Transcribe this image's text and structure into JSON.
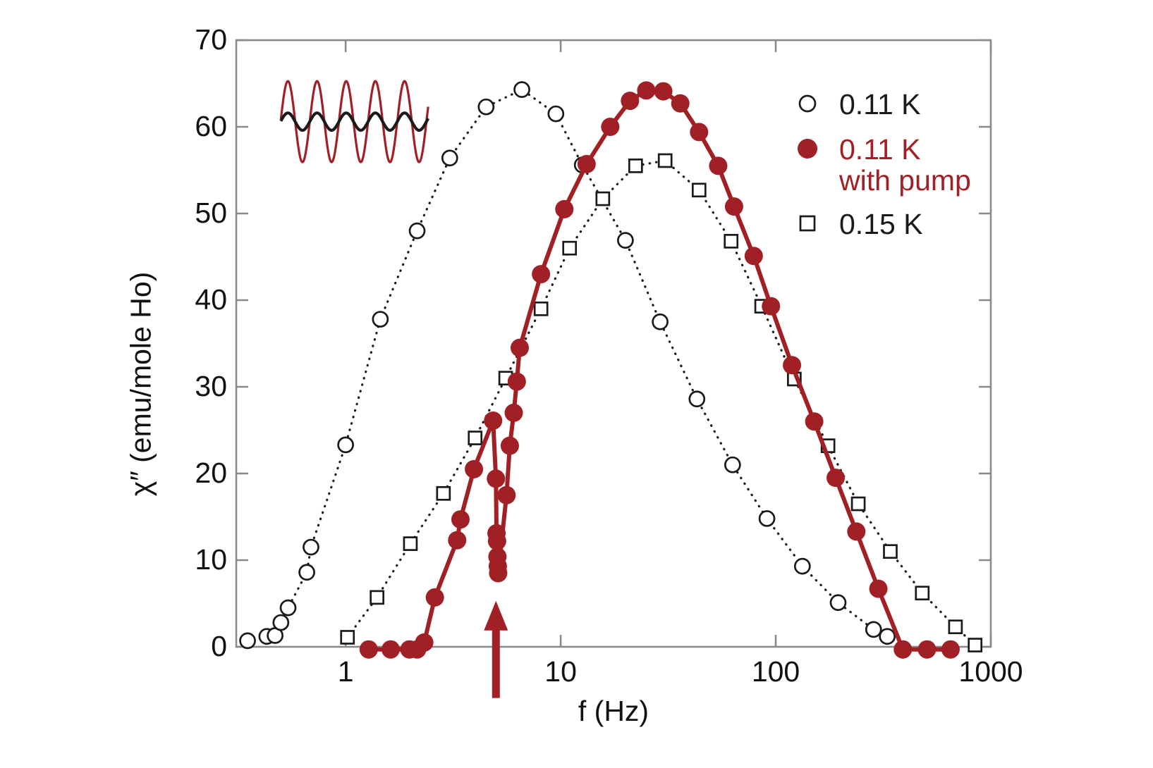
{
  "figure": {
    "background": "#ffffff"
  },
  "chart_data": {
    "type": "line",
    "title": "",
    "xlabel": "f (Hz)",
    "ylabel": "χ″  (emu/mole Ho)",
    "x_scale": "log",
    "xlim": [
      0.31,
      1000
    ],
    "ylim": [
      0,
      70
    ],
    "grid": false,
    "legend_position": "upper right",
    "axis_color": "#8a8a8a",
    "text_color": "#111111",
    "xticks": {
      "values": [
        1,
        10,
        100,
        1000
      ],
      "labels": [
        "1",
        "10",
        "100",
        "1000"
      ]
    },
    "yticks": {
      "values": [
        0,
        10,
        20,
        30,
        40,
        50,
        60,
        70
      ],
      "labels": [
        "0",
        "10",
        "20",
        "30",
        "40",
        "50",
        "60",
        "70"
      ]
    },
    "series": [
      {
        "name": "0.11 K",
        "marker": "open-circle",
        "line": "dotted",
        "color": "#1a1a1a",
        "points": [
          [
            0.35,
            0.7
          ],
          [
            0.43,
            1.2
          ],
          [
            0.47,
            1.3
          ],
          [
            0.5,
            2.8
          ],
          [
            0.54,
            4.5
          ],
          [
            0.66,
            8.6
          ],
          [
            0.69,
            11.5
          ],
          [
            1.0,
            23.3
          ],
          [
            1.45,
            37.8
          ],
          [
            2.15,
            48.0
          ],
          [
            3.05,
            56.4
          ],
          [
            4.5,
            62.3
          ],
          [
            6.6,
            64.3
          ],
          [
            9.5,
            61.5
          ],
          [
            12.6,
            55.6
          ],
          [
            20,
            46.9
          ],
          [
            29,
            37.5
          ],
          [
            43,
            28.6
          ],
          [
            63,
            21.0
          ],
          [
            91,
            14.8
          ],
          [
            133,
            9.3
          ],
          [
            195,
            5.1
          ],
          [
            285,
            2.0
          ],
          [
            330,
            1.2
          ]
        ]
      },
      {
        "name": "0.11 K with pump",
        "marker": "filled-circle",
        "line": "solid",
        "color": "#a12026",
        "points": [
          [
            1.28,
            -0.3
          ],
          [
            1.62,
            -0.3
          ],
          [
            1.98,
            -0.3
          ],
          [
            2.15,
            -0.3
          ],
          [
            2.32,
            0.5
          ],
          [
            2.6,
            5.7
          ],
          [
            3.3,
            12.3
          ],
          [
            3.42,
            14.7
          ],
          [
            3.95,
            20.5
          ],
          [
            4.85,
            26.1
          ],
          [
            5.0,
            19.4
          ],
          [
            5.03,
            13.1
          ],
          [
            5.06,
            12.2
          ],
          [
            5.08,
            10.4
          ],
          [
            5.1,
            9.3
          ],
          [
            5.12,
            8.5
          ],
          [
            5.6,
            17.5
          ],
          [
            5.8,
            23.2
          ],
          [
            6.05,
            27.0
          ],
          [
            6.25,
            30.6
          ],
          [
            6.45,
            34.5
          ],
          [
            8.1,
            43.0
          ],
          [
            10.4,
            50.5
          ],
          [
            13.2,
            55.7
          ],
          [
            17,
            60.0
          ],
          [
            21,
            63.0
          ],
          [
            25,
            64.2
          ],
          [
            30,
            64.1
          ],
          [
            36,
            62.7
          ],
          [
            44,
            59.4
          ],
          [
            54,
            55.5
          ],
          [
            64,
            50.8
          ],
          [
            79,
            45.1
          ],
          [
            95,
            39.3
          ],
          [
            119,
            32.5
          ],
          [
            151,
            26.0
          ],
          [
            190,
            19.5
          ],
          [
            237,
            13.3
          ],
          [
            300,
            6.7
          ],
          [
            390,
            -0.3
          ],
          [
            505,
            -0.3
          ],
          [
            650,
            -0.3
          ]
        ]
      },
      {
        "name": "0.15 K",
        "marker": "open-square",
        "line": "dotted",
        "color": "#1a1a1a",
        "points": [
          [
            1.02,
            1.1
          ],
          [
            1.4,
            5.7
          ],
          [
            2.0,
            11.9
          ],
          [
            2.85,
            17.7
          ],
          [
            4.0,
            24.1
          ],
          [
            5.55,
            31.0
          ],
          [
            8.1,
            39.0
          ],
          [
            11,
            46.0
          ],
          [
            15.7,
            51.7
          ],
          [
            22.3,
            55.5
          ],
          [
            30.6,
            56.1
          ],
          [
            44,
            52.7
          ],
          [
            62,
            46.8
          ],
          [
            86,
            39.3
          ],
          [
            122,
            30.9
          ],
          [
            175,
            23.2
          ],
          [
            242,
            16.5
          ],
          [
            341,
            11.0
          ],
          [
            480,
            6.2
          ],
          [
            685,
            2.3
          ],
          [
            845,
            0.2
          ]
        ]
      }
    ],
    "legend": [
      {
        "label": "0.11 K",
        "label2": "",
        "marker": "open-circle",
        "color": "#1a1a1a"
      },
      {
        "label": "0.11 K",
        "label2": "with pump",
        "marker": "filled-circle",
        "color": "#a12026"
      },
      {
        "label": "0.15 K",
        "label2": "",
        "marker": "open-square",
        "color": "#1a1a1a"
      }
    ],
    "annotations": {
      "pump_arrow": {
        "f": 5,
        "chi_tail": -5.9,
        "chi_tip": 5.3,
        "color": "#a12026"
      },
      "inset_wave": {
        "f_start": 0.5,
        "f_end": 2.42,
        "center_chi": 60.6,
        "cycles": 5.05,
        "phase_cycles": -0.24,
        "waves": [
          {
            "name": "pump-drive-wave",
            "color": "#a12026",
            "amplitude_chi": 4.67,
            "width": 3.2
          },
          {
            "name": "response-wave",
            "color": "#1a1a1a",
            "amplitude_chi": 1.0,
            "width": 4.2
          }
        ]
      }
    }
  }
}
